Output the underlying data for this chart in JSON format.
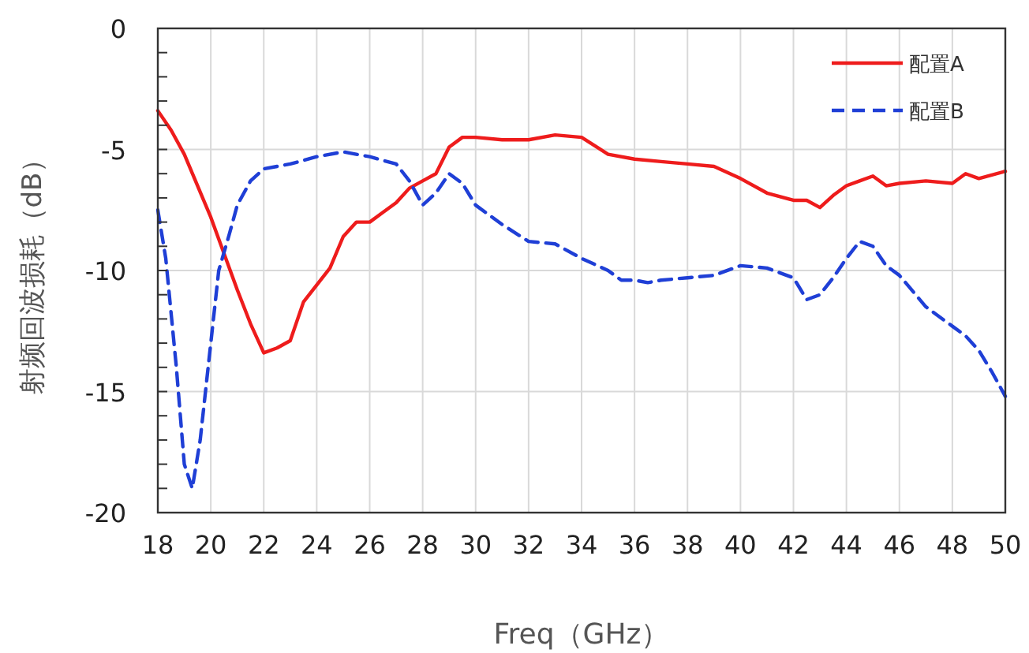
{
  "chart_data": {
    "type": "line",
    "xlabel": "Freq（GHz）",
    "ylabel": "射频回波损耗（dB）",
    "xlim": [
      18,
      50
    ],
    "xticks": [
      18,
      20,
      22,
      24,
      26,
      28,
      30,
      32,
      34,
      36,
      38,
      40,
      42,
      44,
      46,
      48,
      50
    ],
    "ylim": [
      -20,
      0
    ],
    "yticks": [
      -20,
      {
        "value": -19,
        "label": null
      },
      {
        "value": -18,
        "label": null
      },
      {
        "value": -17,
        "label": null
      },
      {
        "value": -16,
        "label": null
      },
      -15,
      {
        "value": -14,
        "label": null
      },
      {
        "value": -13,
        "label": null
      },
      {
        "value": -12,
        "label": null
      },
      {
        "value": -11,
        "label": null
      },
      -10,
      {
        "value": -9,
        "label": null
      },
      {
        "value": -8,
        "label": null
      },
      {
        "value": -7,
        "label": null
      },
      {
        "value": -6,
        "label": null
      },
      -5,
      {
        "value": -4,
        "label": null
      },
      {
        "value": -3,
        "label": null
      },
      {
        "value": -2,
        "label": null
      },
      {
        "value": -1,
        "label": null
      },
      0
    ],
    "grid": true,
    "legend": "top right",
    "marker": "none",
    "series": [
      {
        "name": "配置A",
        "color": "#ee1c1c",
        "line_style": "solid",
        "x": [
          18,
          18.5,
          19,
          20,
          21,
          21.5,
          22,
          22.5,
          23,
          23.5,
          24,
          24.5,
          25,
          25.5,
          26,
          26.5,
          27,
          27.5,
          28,
          28.5,
          29,
          29.5,
          30,
          31,
          32,
          33,
          34,
          35,
          36,
          37,
          38,
          39,
          40,
          41,
          42,
          42.5,
          43,
          43.5,
          44,
          44.5,
          45,
          45.5,
          46,
          47,
          48,
          48.5,
          49,
          50
        ],
        "values": [
          -3.4,
          -4.2,
          -5.2,
          -7.8,
          -10.8,
          -12.2,
          -13.4,
          -13.2,
          -12.9,
          -11.3,
          -10.6,
          -9.9,
          -8.6,
          -8.0,
          -8.0,
          -7.6,
          -7.2,
          -6.6,
          -6.3,
          -6.0,
          -4.9,
          -4.5,
          -4.5,
          -4.6,
          -4.6,
          -4.4,
          -4.5,
          -5.2,
          -5.4,
          -5.5,
          -5.6,
          -5.7,
          -6.2,
          -6.8,
          -7.1,
          -7.1,
          -7.4,
          -6.9,
          -6.5,
          -6.3,
          -6.1,
          -6.5,
          -6.4,
          -6.3,
          -6.4,
          -6.0,
          -6.2,
          -5.9
        ]
      },
      {
        "name": "配置B",
        "color": "#1f3fd6",
        "line_style": "dashed",
        "x": [
          18,
          18.3,
          18.7,
          19,
          19.3,
          19.6,
          20,
          20.3,
          20.7,
          21,
          21.5,
          22,
          23,
          24,
          25,
          26,
          27,
          27.5,
          28,
          28.5,
          29,
          29.5,
          30,
          31,
          32,
          33,
          34,
          35,
          35.5,
          36,
          36.5,
          37,
          38,
          39,
          40,
          41,
          42,
          42.5,
          43,
          43.5,
          44,
          44.5,
          45,
          45.5,
          46,
          47,
          48,
          48.5,
          49,
          49.5,
          50
        ],
        "values": [
          -7.5,
          -9.5,
          -14,
          -18,
          -19.0,
          -17,
          -13,
          -10,
          -8.5,
          -7.3,
          -6.3,
          -5.8,
          -5.6,
          -5.3,
          -5.1,
          -5.3,
          -5.6,
          -6.3,
          -7.3,
          -6.8,
          -6.0,
          -6.4,
          -7.3,
          -8.1,
          -8.8,
          -8.9,
          -9.5,
          -10.0,
          -10.4,
          -10.4,
          -10.5,
          -10.4,
          -10.3,
          -10.2,
          -9.8,
          -9.9,
          -10.3,
          -11.2,
          -11.0,
          -10.3,
          -9.5,
          -8.8,
          -9.0,
          -9.8,
          -10.2,
          -11.5,
          -12.3,
          -12.7,
          -13.3,
          -14.2,
          -15.2
        ]
      }
    ]
  }
}
